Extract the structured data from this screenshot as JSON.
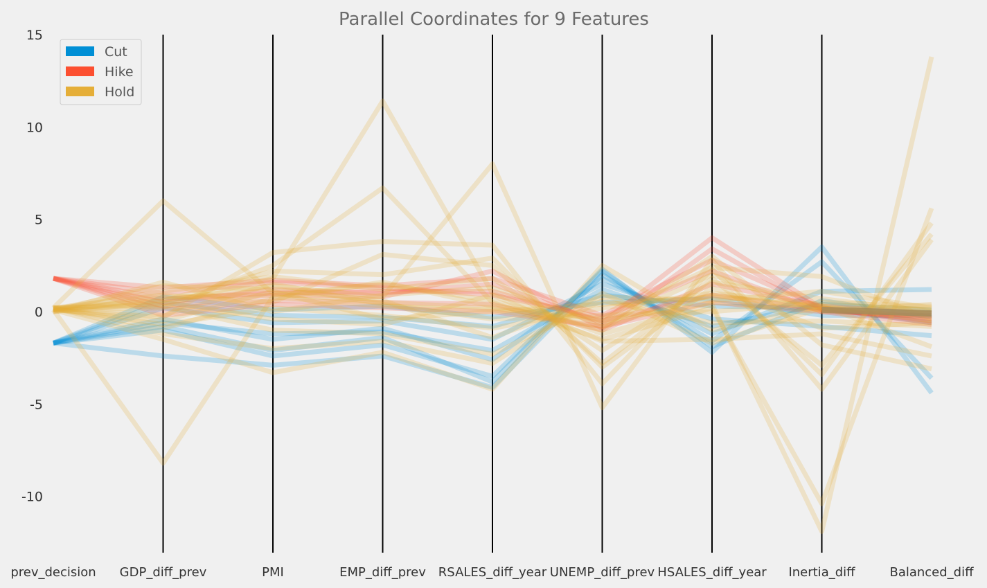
{
  "chart_data": {
    "type": "parallel_coordinates",
    "title": "Parallel Coordinates for 9 Features",
    "axes": [
      "prev_decision",
      "GDP_diff_prev",
      "PMI",
      "EMP_diff_prev",
      "RSALES_diff_year",
      "UNEMP_diff_prev",
      "HSALES_diff_year",
      "Inertia_diff",
      "Balanced_diff"
    ],
    "ylim": [
      -13,
      15
    ],
    "yticks": [
      -10,
      -5,
      0,
      5,
      10,
      15
    ],
    "grid": false,
    "legend_position": "top-left",
    "series": [
      {
        "name": "Cut",
        "color": "#008fd5",
        "lines": [
          [
            -1.7,
            -0.8,
            -2.1,
            -1.4,
            -3.8,
            2.3,
            -2.2,
            3.5,
            -4.4
          ],
          [
            -1.7,
            -2.4,
            -2.9,
            -2.4,
            -4.1,
            2.0,
            -1.6,
            2.7,
            -3.6
          ],
          [
            -1.7,
            -0.4,
            -1.5,
            -0.9,
            -2.6,
            1.8,
            -1.2,
            1.1,
            1.2
          ],
          [
            -1.7,
            0.2,
            -0.6,
            -0.5,
            -1.5,
            1.5,
            -0.4,
            -0.8,
            -1.3
          ],
          [
            -1.7,
            -1.0,
            -2.4,
            -1.8,
            -3.5,
            2.2,
            -1.9,
            0.6,
            -0.3
          ],
          [
            -1.7,
            0.5,
            -0.2,
            -0.3,
            -0.8,
            0.9,
            0.3,
            0.2,
            -0.6
          ],
          [
            -1.7,
            -0.6,
            -1.2,
            -1.1,
            -2.1,
            1.2,
            -0.8,
            0.4,
            0.1
          ],
          [
            -1.7,
            0.8,
            0.1,
            0.3,
            -0.3,
            0.5,
            0.7,
            -0.2,
            -0.2
          ]
        ]
      },
      {
        "name": "Hike",
        "color": "#fc4f30",
        "lines": [
          [
            1.8,
            0.5,
            1.2,
            1.0,
            1.5,
            -0.6,
            4.0,
            0.2,
            -0.5
          ],
          [
            1.8,
            0.3,
            0.9,
            0.8,
            2.2,
            -0.9,
            3.4,
            0.1,
            -0.3
          ],
          [
            1.8,
            1.0,
            1.6,
            1.3,
            0.9,
            -0.3,
            2.2,
            0.0,
            -0.7
          ],
          [
            1.8,
            0.1,
            0.6,
            0.5,
            0.4,
            -1.0,
            1.5,
            0.3,
            -0.1
          ],
          [
            1.8,
            0.7,
            1.0,
            1.1,
            1.1,
            -0.5,
            0.9,
            0.1,
            -0.4
          ],
          [
            1.8,
            -0.2,
            0.4,
            0.2,
            0.0,
            -0.8,
            0.5,
            0.0,
            -0.2
          ],
          [
            1.8,
            1.3,
            1.7,
            1.4,
            1.8,
            -0.2,
            2.8,
            0.2,
            -0.6
          ]
        ]
      },
      {
        "name": "Hold",
        "color": "#e5ae38",
        "lines": [
          [
            0.2,
            6.0,
            1.0,
            0.5,
            0.2,
            -0.5,
            0.5,
            0.1,
            -0.1
          ],
          [
            0.1,
            -8.2,
            0.8,
            0.3,
            0.1,
            -0.8,
            0.9,
            0.2,
            0.1
          ],
          [
            0.2,
            0.4,
            1.8,
            11.4,
            1.0,
            -1.2,
            0.4,
            -11.9,
            13.8
          ],
          [
            0.1,
            0.2,
            2.5,
            6.7,
            0.5,
            -1.5,
            0.2,
            -10.4,
            5.6
          ],
          [
            0.2,
            0.6,
            1.4,
            0.8,
            8.0,
            -5.2,
            2.8,
            -4.2,
            3.9
          ],
          [
            0.1,
            -0.3,
            3.2,
            3.8,
            3.6,
            -3.9,
            2.3,
            -3.4,
            4.8
          ],
          [
            0.2,
            0.9,
            0.5,
            3.1,
            2.5,
            -2.8,
            1.8,
            -2.9,
            4.2
          ],
          [
            0.1,
            -1.5,
            -3.3,
            -2.2,
            -4.2,
            2.5,
            -1.0,
            0.3,
            -1.9
          ],
          [
            0.2,
            -0.9,
            0.7,
            1.6,
            0.3,
            -0.4,
            2.4,
            1.9,
            -0.4
          ],
          [
            0.1,
            1.4,
            1.2,
            0.6,
            -1.4,
            0.8,
            0.6,
            1.1,
            0.2
          ],
          [
            0.0,
            0.5,
            -0.4,
            -0.7,
            0.9,
            -1.6,
            -1.5,
            -1.2,
            -2.4
          ],
          [
            0.2,
            -0.7,
            0.2,
            -0.2,
            -0.9,
            0.2,
            1.0,
            0.4,
            0.1
          ],
          [
            0.1,
            1.1,
            1.9,
            1.2,
            1.8,
            -2.1,
            1.6,
            0.7,
            0.0
          ],
          [
            0.2,
            0.3,
            -1.0,
            -1.2,
            -2.3,
            0.6,
            -0.6,
            -0.5,
            -0.8
          ],
          [
            0.0,
            0.8,
            0.9,
            1.5,
            0.6,
            -1.0,
            3.0,
            -1.8,
            -3.1
          ],
          [
            0.2,
            -0.2,
            1.5,
            0.4,
            -0.4,
            -0.2,
            0.0,
            0.5,
            0.3
          ],
          [
            0.1,
            0.6,
            2.2,
            2.0,
            2.9,
            -3.0,
            1.3,
            -0.9,
            -0.6
          ],
          [
            0.2,
            -1.2,
            -2.0,
            -1.6,
            -2.8,
            1.0,
            -1.7,
            0.2,
            -0.2
          ],
          [
            0.0,
            1.6,
            0.0,
            0.9,
            1.3,
            -0.7,
            2.0,
            0.0,
            0.4
          ],
          [
            0.1,
            -0.5,
            1.1,
            -0.4,
            0.0,
            0.4,
            0.8,
            0.3,
            -0.5
          ]
        ]
      }
    ],
    "median_line": {
      "color": "#a08a5c",
      "values": [
        null,
        null,
        null,
        null,
        null,
        null,
        null,
        0.1,
        -0.1
      ]
    }
  }
}
